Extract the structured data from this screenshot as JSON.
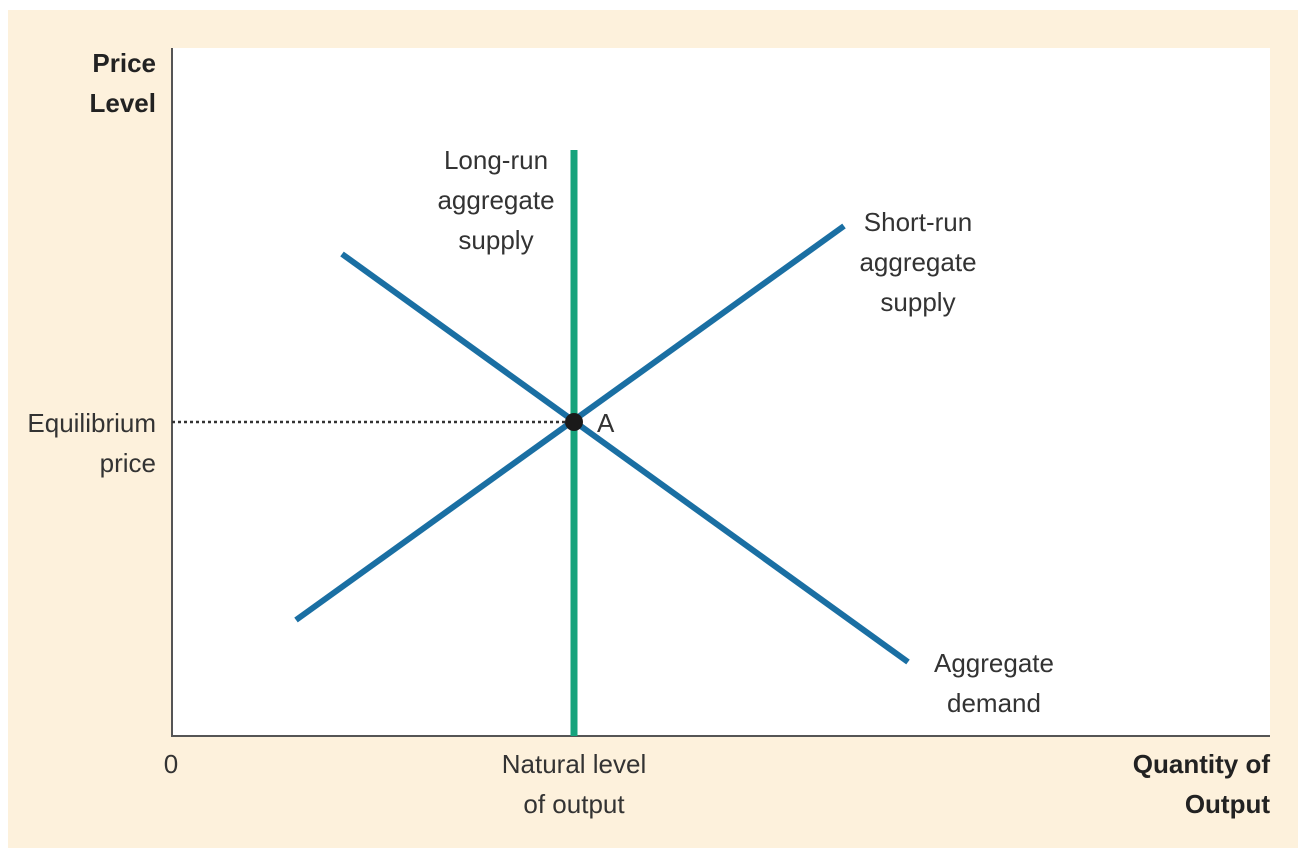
{
  "colors": {
    "frame_background": "#fdf1dc",
    "plot_background": "#ffffff",
    "axis": "#555555",
    "curve_blue": "#1a6fa3",
    "curve_green": "#16a37c",
    "point": "#1a1a1a"
  },
  "axes": {
    "y_label": [
      "Price",
      "Level"
    ],
    "x_label": [
      "Quantity of",
      "Output"
    ],
    "origin": "0",
    "y_marker": [
      "Equilibrium",
      "price"
    ],
    "x_marker": [
      "Natural level",
      "of output"
    ]
  },
  "curves": {
    "lras": [
      "Long-run",
      "aggregate",
      "supply"
    ],
    "sras": [
      "Short-run",
      "aggregate",
      "supply"
    ],
    "ad": [
      "Aggregate",
      "demand"
    ]
  },
  "point_label": "A"
}
